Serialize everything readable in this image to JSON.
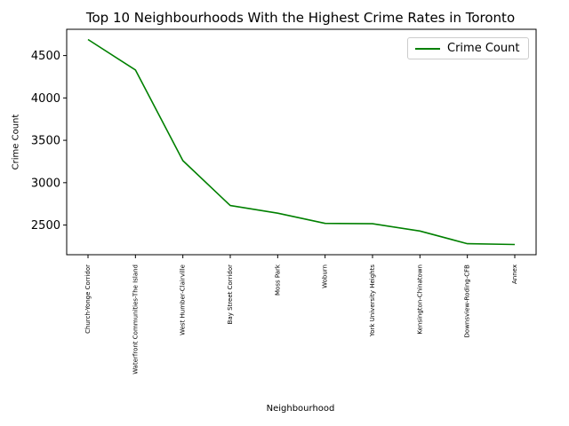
{
  "chart_data": {
    "type": "line",
    "title": "Top 10 Neighbourhoods With the Highest Crime Rates in Toronto",
    "xlabel": "Neighbourhood",
    "ylabel": "Crime Count",
    "categories": [
      "Church-Yonge Corridor",
      "Waterfront Communities-The Island",
      "West Humber-Clairville",
      "Bay Street Corridor",
      "Moss Park",
      "Woburn",
      "York University Heights",
      "Kensington-Chinatown",
      "Downsview-Roding-CFB",
      "Annex"
    ],
    "series": [
      {
        "name": "Crime Count",
        "color": "#008000",
        "values": [
          4690,
          4330,
          3260,
          2730,
          2640,
          2520,
          2515,
          2430,
          2280,
          2270
        ]
      }
    ],
    "ylim": [
      2150,
      4810
    ],
    "yticks": [
      2500,
      3000,
      3500,
      4000,
      4500
    ],
    "ytick_labels": [
      "2500",
      "3000",
      "3500",
      "4000",
      "4500"
    ],
    "grid": false,
    "legend": "top-right"
  }
}
